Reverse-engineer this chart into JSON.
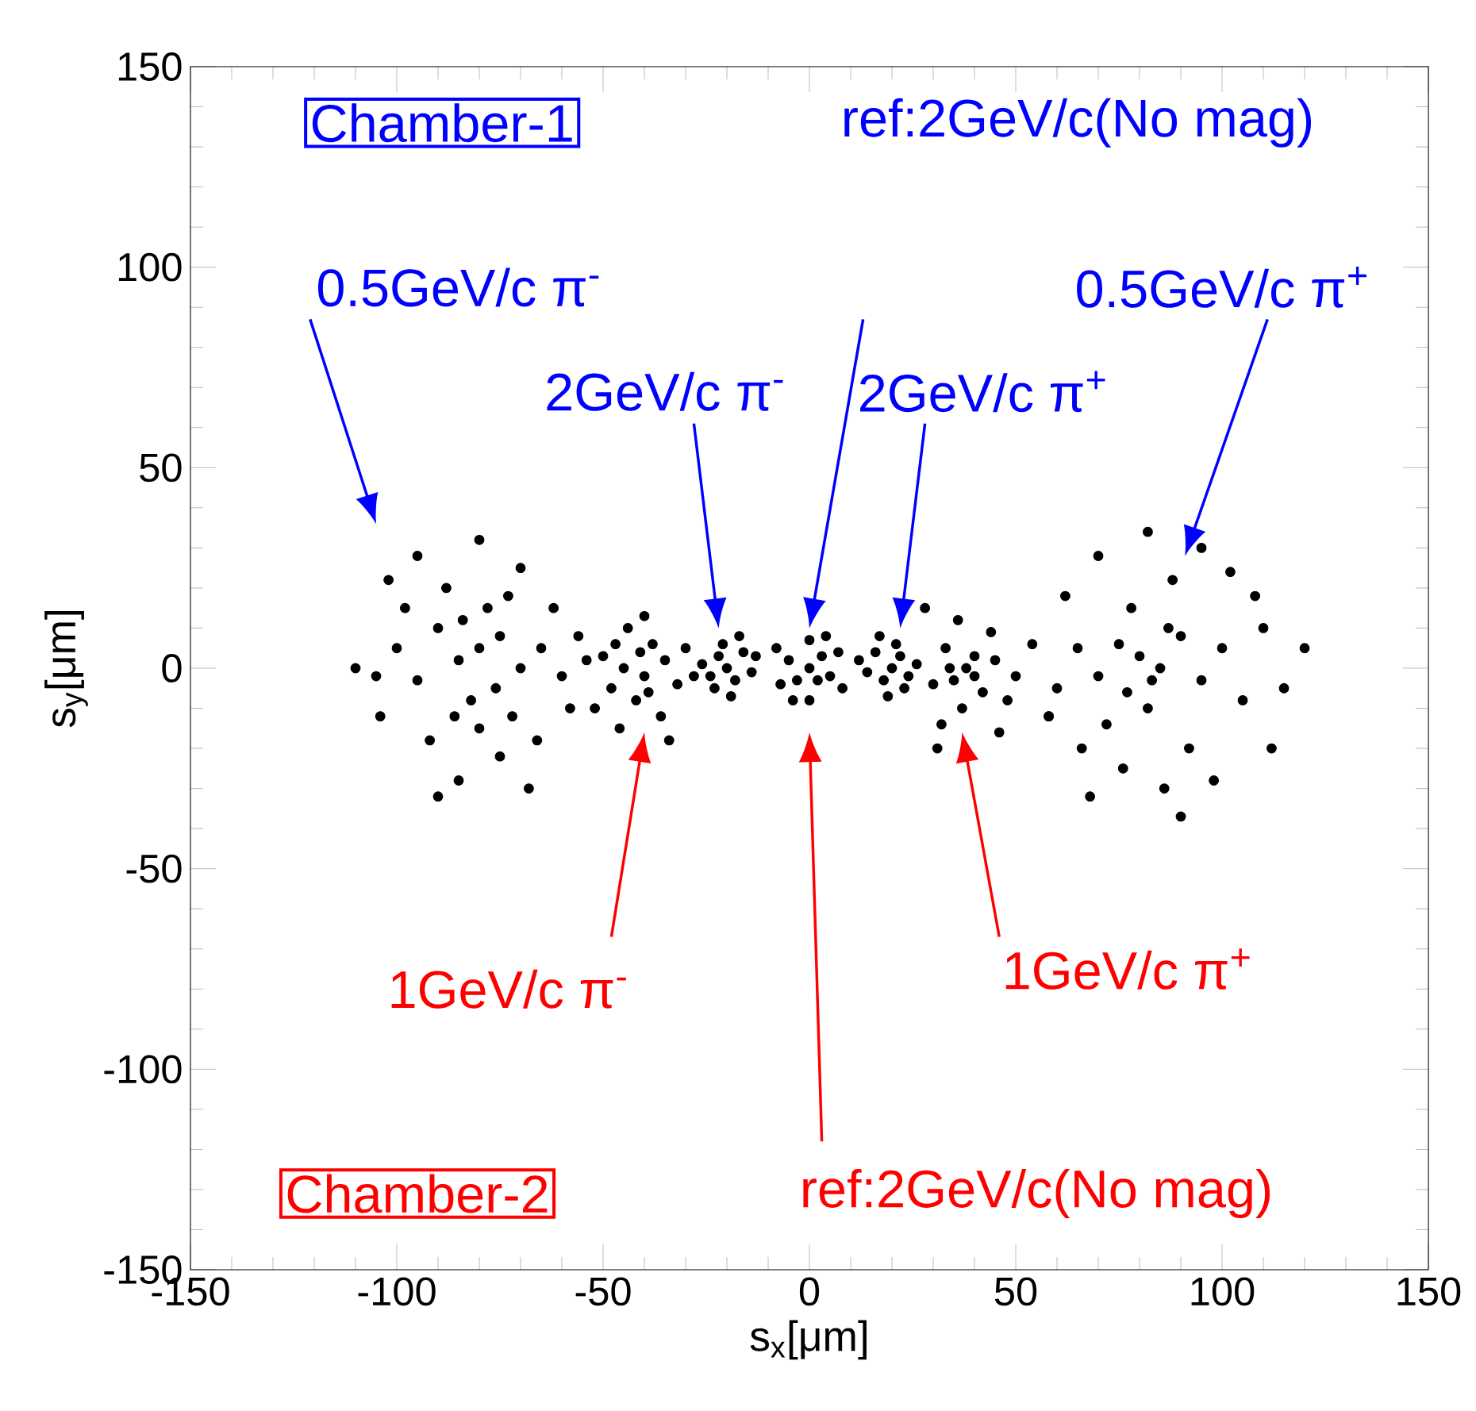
{
  "chart_data": {
    "type": "scatter",
    "xlabel": "s$_{x}$[μm]",
    "ylabel": "s$_{y}$[μm]",
    "xlim": [
      -150,
      150
    ],
    "ylim": [
      -150,
      150
    ],
    "xticks": [
      -150,
      -100,
      -50,
      0,
      50,
      100,
      150
    ],
    "yticks": [
      -150,
      -100,
      -50,
      0,
      50,
      100,
      150
    ],
    "series": [
      {
        "color": "#000000",
        "x": [
          -80,
          -85,
          -75,
          -90,
          -70,
          -95,
          -78,
          -82,
          -88,
          -72,
          -100,
          -65,
          -60,
          -105,
          -110,
          -92,
          -75,
          -85,
          -70,
          -95,
          -80,
          -102,
          -62,
          -58,
          -68,
          -90,
          -98,
          -86,
          -76,
          -84,
          -73,
          -66,
          -104,
          -56,
          -80,
          -40,
          -45,
          -35,
          -42,
          -38,
          -48,
          -32,
          -50,
          -44,
          -36,
          -52,
          -30,
          -40,
          -46,
          -34,
          -54,
          -28,
          -41,
          -39,
          -47,
          -20,
          -22,
          -18,
          -24,
          -16,
          -21,
          -19,
          -26,
          -14,
          -23,
          -17,
          -13,
          0,
          3,
          -3,
          5,
          -5,
          0,
          0,
          7,
          -7,
          8,
          -8,
          4,
          -4,
          2,
          20,
          22,
          18,
          24,
          16,
          21,
          19,
          26,
          14,
          23,
          17,
          12,
          38,
          40,
          35,
          42,
          33,
          45,
          37,
          30,
          48,
          44,
          36,
          50,
          32,
          28,
          46,
          54,
          31,
          58,
          40,
          34,
          80,
          85,
          75,
          90,
          70,
          95,
          78,
          82,
          88,
          72,
          100,
          65,
          60,
          105,
          110,
          120,
          92,
          76,
          86,
          70,
          95,
          82,
          102,
          62,
          58,
          68,
          90,
          98,
          115,
          108,
          83,
          77,
          87,
          66,
          112
        ],
        "values": [
          5,
          2,
          8,
          10,
          0,
          -3,
          15,
          -8,
          20,
          -12,
          5,
          5,
          -2,
          -2,
          0,
          -18,
          -22,
          -28,
          25,
          28,
          32,
          22,
          15,
          -10,
          -30,
          -32,
          15,
          -12,
          -5,
          12,
          18,
          -18,
          -12,
          8,
          -15,
          -2,
          0,
          2,
          -8,
          6,
          -5,
          -4,
          3,
          10,
          -12,
          -10,
          5,
          13,
          -15,
          -18,
          2,
          -2,
          4,
          -6,
          6,
          0,
          3,
          -3,
          -2,
          4,
          6,
          -7,
          1,
          -1,
          -5,
          8,
          3,
          0,
          3,
          -3,
          -2,
          2,
          7,
          -8,
          4,
          -4,
          -5,
          5,
          8,
          -8,
          -3,
          0,
          3,
          -3,
          -2,
          4,
          6,
          -7,
          1,
          -1,
          -5,
          8,
          2,
          0,
          3,
          -3,
          -6,
          5,
          2,
          -10,
          -4,
          -8,
          9,
          12,
          -2,
          -14,
          15,
          -16,
          6,
          -20,
          -12,
          -2,
          0,
          3,
          0,
          6,
          8,
          -2,
          -3,
          15,
          -10,
          22,
          -14,
          5,
          5,
          -5,
          -8,
          10,
          5,
          -20,
          -25,
          -30,
          28,
          30,
          34,
          24,
          18,
          -12,
          -32,
          -37,
          -28,
          -5,
          18,
          -3,
          -6,
          10,
          -20,
          -20
        ]
      }
    ],
    "annotations": [
      "Chamber-1",
      "ref:2GeV/c(No mag)",
      "0.5GeV/c π$^{-}$",
      "2GeV/c π$^{-}$",
      "2GeV/c π$^{+}$",
      "0.5GeV/c π$^{+}$",
      "Chamber-2",
      "ref:2GeV/c(No mag)",
      "1GeV/c π$^{-}$",
      "1GeV/c π$^{+}$"
    ]
  }
}
